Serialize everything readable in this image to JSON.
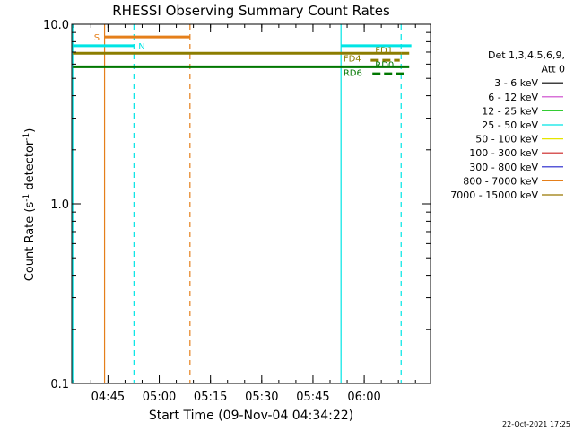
{
  "chart_data": {
    "type": "line",
    "title": "RHESSI Observing Summary Count Rates",
    "xlabel": "Start Time (09-Nov-04 04:34:22)",
    "ylabel_parts": {
      "a": "Count Rate (s",
      "sup1": "-1",
      "b": " detector",
      "sup2": "-1",
      "c": ")"
    },
    "x_unit": "minutes since 04:34:22",
    "xlim": [
      0,
      105
    ],
    "ylim": [
      0.1,
      10.0
    ],
    "yscale": "log",
    "x_ticks": [
      {
        "value": 10.6,
        "label": "04:45"
      },
      {
        "value": 25.6,
        "label": "05:00"
      },
      {
        "value": 40.6,
        "label": "05:15"
      },
      {
        "value": 55.6,
        "label": "05:30"
      },
      {
        "value": 70.6,
        "label": "05:45"
      },
      {
        "value": 85.6,
        "label": "06:00"
      }
    ],
    "y_ticks": [
      {
        "value": 0.1,
        "label": "0.1"
      },
      {
        "value": 1.0,
        "label": "1.0"
      },
      {
        "value": 10.0,
        "label": "10.0"
      }
    ],
    "y_minor_ticks": [
      0.2,
      0.3,
      0.4,
      0.5,
      0.6,
      0.7,
      0.8,
      0.9,
      2,
      3,
      4,
      5,
      6,
      7,
      8,
      9
    ],
    "x_minor_step": 5,
    "legend": {
      "position": "right",
      "header": [
        "Det 1,3,4,5,6,9,",
        "Att 0"
      ],
      "entries": [
        {
          "label": "3 - 6 keV",
          "color": "#000000"
        },
        {
          "label": "6 - 12 keV",
          "color": "#cc44cc"
        },
        {
          "label": "12 - 25 keV",
          "color": "#33cc33"
        },
        {
          "label": "25 - 50 keV",
          "color": "#00e5e5"
        },
        {
          "label": "50 - 100 keV",
          "color": "#e5e500"
        },
        {
          "label": "100 - 300 keV",
          "color": "#cc2222"
        },
        {
          "label": "300 - 800 keV",
          "color": "#2222cc"
        },
        {
          "label": "800 - 7000 keV",
          "color": "#e57f1a"
        },
        {
          "label": "7000 - 15000 keV",
          "color": "#997700"
        }
      ]
    },
    "vertical_lines": [
      {
        "x": 0.3,
        "color": "#00e5e5",
        "style": "solid"
      },
      {
        "x": 9.6,
        "color": "#e57f1a",
        "style": "solid"
      },
      {
        "x": 18.2,
        "color": "#00e5e5",
        "style": "dashed"
      },
      {
        "x": 34.6,
        "color": "#e57f1a",
        "style": "dashed"
      },
      {
        "x": 78.8,
        "color": "#00e5e5",
        "style": "solid"
      },
      {
        "x": 96.4,
        "color": "#00e5e5",
        "style": "dashed"
      }
    ],
    "flag_bars": [
      {
        "label": "S",
        "y": 8.5,
        "x": [
          9.6,
          34.6
        ],
        "color": "#e57f1a",
        "style": "solid"
      },
      {
        "label": "N",
        "y": 7.6,
        "x": [
          0.3,
          18.2
        ],
        "color": "#00e5e5",
        "style": "solid"
      },
      {
        "label": "",
        "y": 7.6,
        "x": [
          78.8,
          99.4
        ],
        "color": "#00e5e5",
        "style": "solid"
      },
      {
        "label": "FD1",
        "y": 6.9,
        "x": [
          0.3,
          96.4
        ],
        "color": "#8c7d00",
        "style": "solid"
      },
      {
        "label": "FD1",
        "y": 6.9,
        "x": [
          96.4,
          100
        ],
        "color": "#8c7d00",
        "style": "dashed"
      },
      {
        "label": "FD4",
        "y": 6.3,
        "x": [
          87.5,
          96.0
        ],
        "color": "#8c7d00",
        "style": "dashed"
      },
      {
        "label": "RD0",
        "y": 5.8,
        "x": [
          0.3,
          96.4
        ],
        "color": "#007700",
        "style": "solid"
      },
      {
        "label": "RD0",
        "y": 5.8,
        "x": [
          96.4,
          100
        ],
        "color": "#007700",
        "style": "dashed"
      },
      {
        "label": "RD6",
        "y": 5.3,
        "x": [
          88.0,
          98.0
        ],
        "color": "#007700",
        "style": "dashed"
      }
    ],
    "flag_labels": [
      {
        "text": "S",
        "x": 6.5,
        "y": 8.5,
        "color": "#e57f1a"
      },
      {
        "text": "N",
        "x": 19.5,
        "y": 7.6,
        "color": "#00e5e5"
      },
      {
        "text": "FD1",
        "x": 88.8,
        "y": 7.2,
        "color": "#8c7d00"
      },
      {
        "text": "FD4",
        "x": 79.5,
        "y": 6.5,
        "color": "#8c7d00"
      },
      {
        "text": "RD0",
        "x": 88.8,
        "y": 6.0,
        "color": "#007700"
      },
      {
        "text": "RD6",
        "x": 79.5,
        "y": 5.4,
        "color": "#007700"
      }
    ]
  },
  "footer_timestamp": "22-Oct-2021 17:25"
}
